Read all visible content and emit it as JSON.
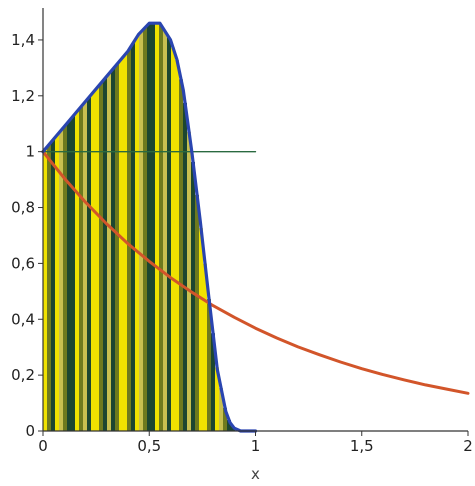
{
  "chart_data": {
    "type": "line",
    "title": "",
    "xlabel": "x",
    "ylabel": "",
    "xlim": [
      0,
      2
    ],
    "ylim": [
      0,
      1.5
    ],
    "grid": false,
    "x_ticks": [
      {
        "value": 0,
        "label": "0"
      },
      {
        "value": 0.5,
        "label": "0,5"
      },
      {
        "value": 1,
        "label": "1"
      },
      {
        "value": 1.5,
        "label": "1,5"
      },
      {
        "value": 2,
        "label": "2"
      }
    ],
    "y_ticks": [
      {
        "value": 0,
        "label": "0"
      },
      {
        "value": 0.2,
        "label": "0,2"
      },
      {
        "value": 0.4,
        "label": "0,4"
      },
      {
        "value": 0.6,
        "label": "0,6"
      },
      {
        "value": 0.8,
        "label": "0,8"
      },
      {
        "value": 1,
        "label": "1"
      },
      {
        "value": 1.2,
        "label": "1,2"
      },
      {
        "value": 1.4,
        "label": "1,4"
      }
    ],
    "series": [
      {
        "color": "#d2552a",
        "x": [
          0,
          0.1,
          0.2,
          0.3,
          0.4,
          0.5,
          0.6,
          0.7,
          0.8,
          0.9,
          1.0,
          1.1,
          1.2,
          1.3,
          1.4,
          1.5,
          1.6,
          1.7,
          1.8,
          1.9,
          2.0
        ],
        "y": [
          1.0,
          0.905,
          0.819,
          0.741,
          0.67,
          0.607,
          0.549,
          0.497,
          0.449,
          0.407,
          0.368,
          0.333,
          0.301,
          0.273,
          0.247,
          0.223,
          0.202,
          0.183,
          0.165,
          0.15,
          0.135
        ]
      },
      {
        "color": "#2a45b0",
        "x": [
          0,
          0.1,
          0.2,
          0.3,
          0.4,
          0.45,
          0.5,
          0.55,
          0.6,
          0.63,
          0.66,
          0.7,
          0.74,
          0.78,
          0.82,
          0.86,
          0.88,
          0.9,
          0.93,
          0.96,
          1.0
        ],
        "y": [
          1.0,
          1.09,
          1.18,
          1.27,
          1.36,
          1.42,
          1.46,
          1.46,
          1.4,
          1.33,
          1.22,
          1.0,
          0.75,
          0.48,
          0.22,
          0.07,
          0.03,
          0.01,
          0.0,
          0.0,
          0.0
        ]
      },
      {
        "color": "#2a6a40",
        "x": [
          0,
          1
        ],
        "y": [
          1,
          1
        ]
      }
    ],
    "fill_colors": [
      "#f0e200",
      "#6e7a1e",
      "#1c4630",
      "#c8c050"
    ],
    "fill_region": {
      "x_start": 0,
      "x_end": 0.9
    }
  }
}
